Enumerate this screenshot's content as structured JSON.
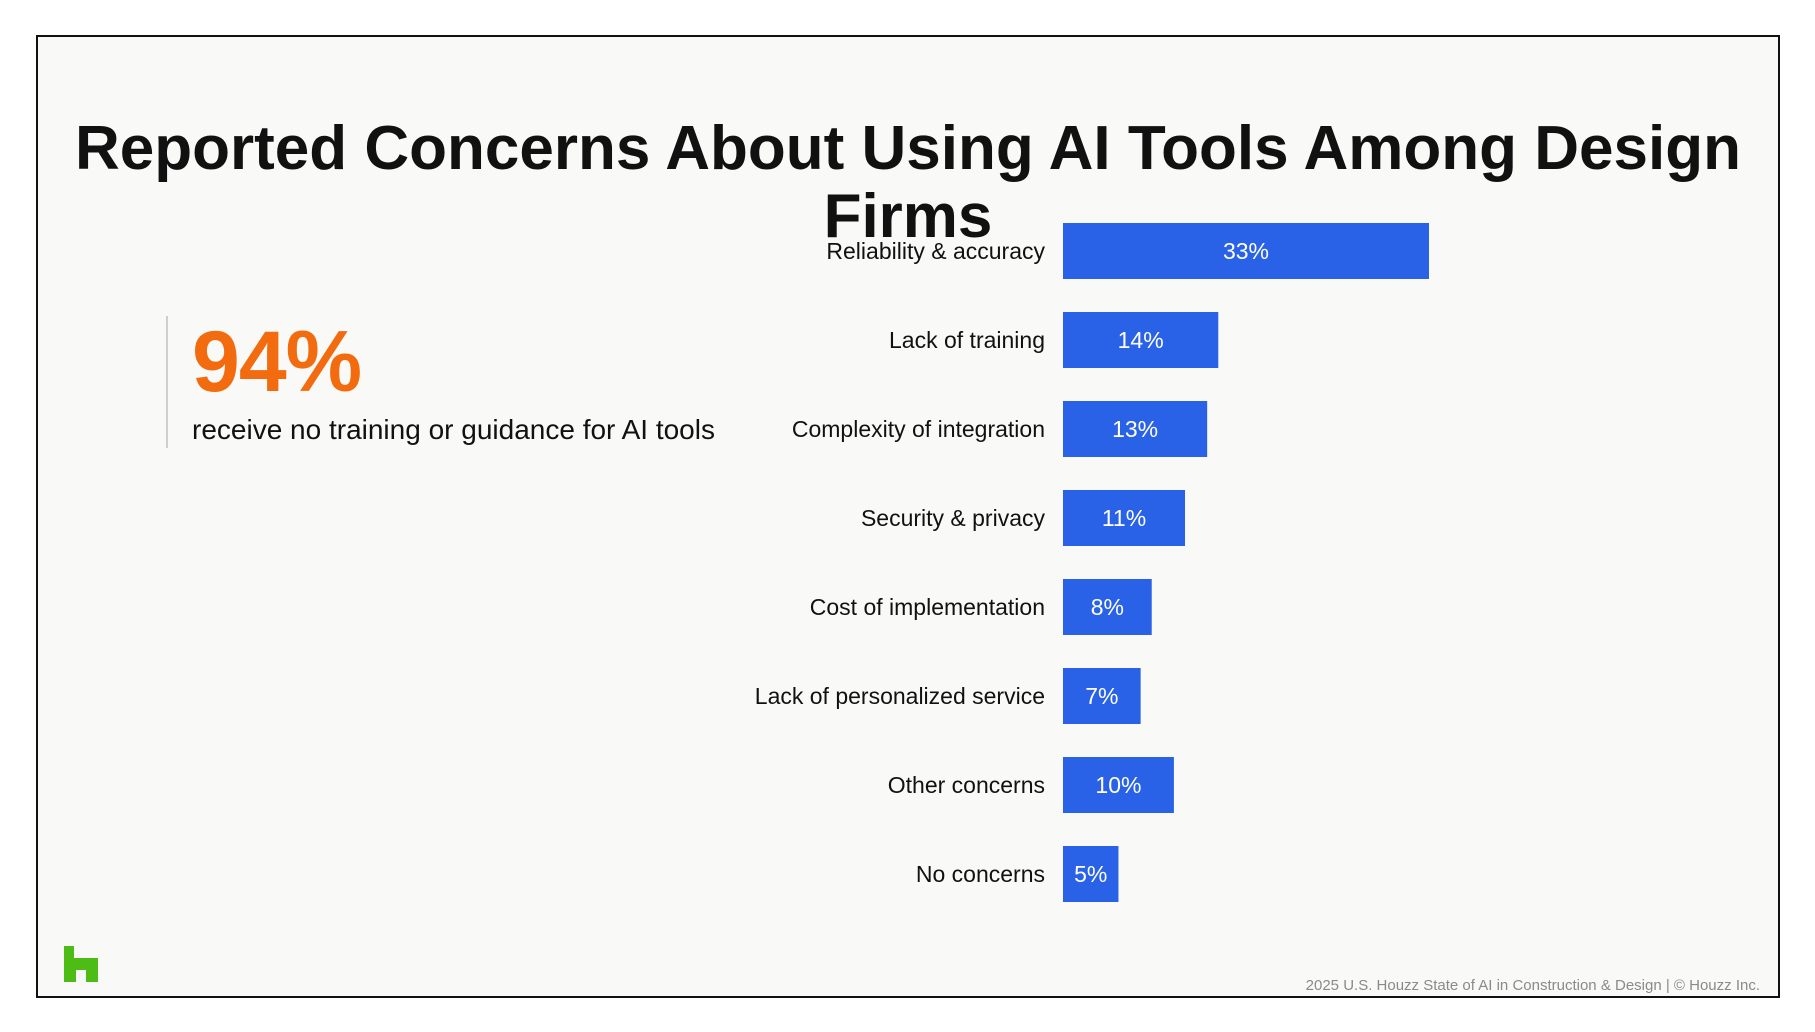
{
  "title": "Reported Concerns About Using AI Tools Among Design Firms",
  "callout": {
    "value": "94%",
    "text": "receive no training or guidance for AI tools"
  },
  "footer": "2025 U.S. Houzz State of AI in Construction & Design | © Houzz Inc.",
  "logo": "houzz-logo-icon",
  "colors": {
    "bar": "#2962e6",
    "accent": "#f26b0f",
    "logo": "#4dbc15"
  },
  "chart_data": {
    "type": "bar",
    "orientation": "horizontal",
    "categories": [
      "Reliability & accuracy",
      "Lack of training",
      "Complexity of integration",
      "Security & privacy",
      "Cost of implementation",
      "Lack of personalized service",
      "Other concerns",
      "No concerns"
    ],
    "values": [
      33,
      14,
      13,
      11,
      8,
      7,
      10,
      5
    ],
    "data_labels": [
      "33%",
      "14%",
      "13%",
      "11%",
      "8%",
      "7%",
      "10%",
      "5%"
    ],
    "title": "",
    "xlabel": "",
    "ylabel": "",
    "xlim": [
      0,
      33
    ],
    "grid": false,
    "legend": "none"
  }
}
